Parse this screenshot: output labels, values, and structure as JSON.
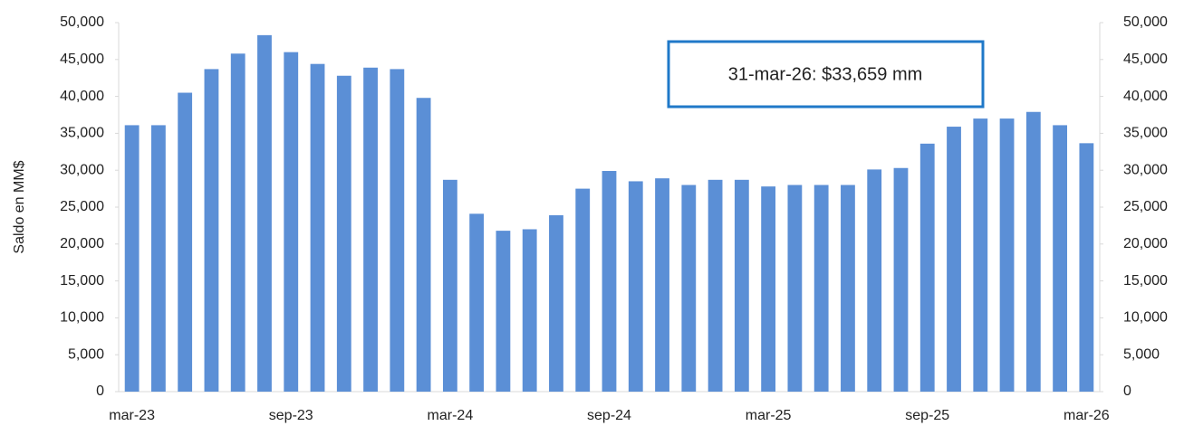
{
  "chart_data": {
    "type": "bar",
    "y_label": "Saldo en MM$",
    "annotation": "31-mar-26: $33,659 mm",
    "color": "#5b8fd6",
    "categories": [
      "mar-23",
      null,
      null,
      null,
      null,
      null,
      "sep-23",
      null,
      null,
      null,
      null,
      null,
      "mar-24",
      null,
      null,
      null,
      null,
      null,
      "sep-24",
      null,
      null,
      null,
      null,
      null,
      "mar-25",
      null,
      null,
      null,
      null,
      null,
      "sep-25",
      null,
      null,
      null,
      null,
      null,
      "mar-26"
    ],
    "values": [
      36100,
      36100,
      40500,
      43700,
      45800,
      48300,
      46000,
      44400,
      42800,
      43900,
      43700,
      39800,
      28700,
      24100,
      21800,
      22000,
      23900,
      27500,
      29900,
      28500,
      28900,
      28000,
      28700,
      28700,
      27800,
      28000,
      28000,
      28000,
      30100,
      30300,
      33600,
      35900,
      37000,
      37000,
      37900,
      36100,
      33659
    ],
    "ylim": [
      0,
      50000
    ],
    "yticks": [
      0,
      {
        "value": 5000,
        "label": "5,000"
      },
      {
        "value": 10000,
        "label": "10,000"
      },
      {
        "value": 15000,
        "label": "15,000"
      },
      {
        "value": 20000,
        "label": "20,000"
      },
      {
        "value": 25000,
        "label": "25,000"
      },
      {
        "value": 30000,
        "label": "30,000"
      },
      {
        "value": 35000,
        "label": "35,000"
      },
      {
        "value": 40000,
        "label": "40,000"
      },
      {
        "value": 45000,
        "label": "45,000"
      },
      {
        "value": 50000,
        "label": "50,000"
      }
    ],
    "y2lim": [
      0,
      50000
    ],
    "y2ticks": [
      0,
      {
        "value": 5000,
        "label": "5,000"
      },
      {
        "value": 10000,
        "label": "10,000"
      },
      {
        "value": 15000,
        "label": "15,000"
      },
      {
        "value": 20000,
        "label": "20,000"
      },
      {
        "value": 25000,
        "label": "25,000"
      },
      {
        "value": 30000,
        "label": "30,000"
      },
      {
        "value": 35000,
        "label": "35,000"
      },
      {
        "value": 40000,
        "label": "40,000"
      },
      {
        "value": 45000,
        "label": "45,000"
      },
      {
        "value": 50000,
        "label": "50,000"
      }
    ],
    "grid": false
  }
}
